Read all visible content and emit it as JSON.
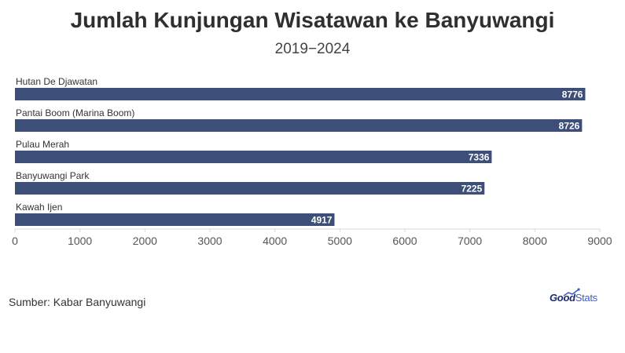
{
  "chart_data": {
    "type": "bar",
    "orientation": "horizontal",
    "title": "Jumlah Kunjungan Wisatawan ke Banyuwangi",
    "subtitle": "2019−2024",
    "categories": [
      "Hutan De Djawatan",
      "Pantai Boom (Marina Boom)",
      "Pulau Merah",
      "Banyuwangi Park",
      "Kawah Ijen"
    ],
    "values": [
      8776,
      8726,
      7336,
      7225,
      4917
    ],
    "xlim": [
      0,
      9000
    ],
    "xticks": [
      "0",
      "1000",
      "2000",
      "3000",
      "4000",
      "5000",
      "6000",
      "7000",
      "8000",
      "9000"
    ],
    "bar_color": "#3d4f78",
    "grid": false,
    "legend": "none"
  },
  "footer": {
    "source": "Sumber: Kabar Banyuwangi",
    "logo_good": "Good",
    "logo_stats": "Stats"
  }
}
